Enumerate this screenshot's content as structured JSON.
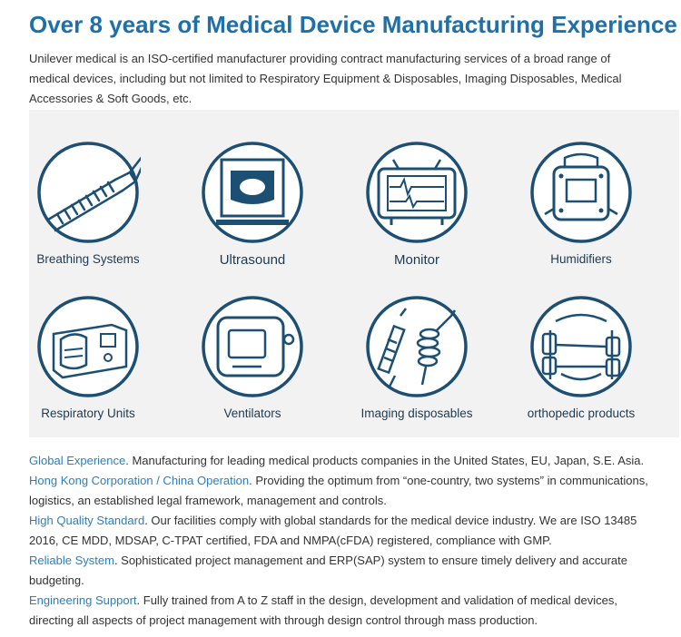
{
  "title": "Over 8 years of Medical Device Manufacturing Experience",
  "intro": "Unilever medical is an ISO-certified manufacturer providing contract manufacturing services of a broad range of medical devices, including but not limited to Respiratory Equipment & Disposables, Imaging Disposables, Medical Accessories & Soft Goods, etc.",
  "products": [
    {
      "label": "Breathing Systems",
      "icon": "breathing-tube-icon"
    },
    {
      "label": "Ultrasound",
      "icon": "ultrasound-screen-icon"
    },
    {
      "label": "Monitor",
      "icon": "monitor-icon"
    },
    {
      "label": "Humidifiers",
      "icon": "humidifier-icon"
    },
    {
      "label": "Respiratory Units",
      "icon": "respiratory-unit-icon"
    },
    {
      "label": "Ventilators",
      "icon": "ventilator-icon"
    },
    {
      "label": "Imaging disposables",
      "icon": "syringe-tubing-icon"
    },
    {
      "label": "orthopedic products",
      "icon": "arm-brace-icon"
    }
  ],
  "features": [
    {
      "heading": "Global Experience",
      "text": ". Manufacturing for leading medical products companies in the United States, EU, Japan, S.E. Asia."
    },
    {
      "heading": "Hong Kong Corporation / China Operation",
      "text": ". Providing the optimum from “one-country, two systems” in communications, logistics, an established legal framework, management and controls."
    },
    {
      "heading": "High Quality Standard",
      "text": ". Our facilities comply with global standards for the medical device industry. We are ISO 13485 2016, CE MDD, MDSAP, C-TPAT certified, FDA and NMPA(cFDA) registered, compliance with GMP."
    },
    {
      "heading": "Reliable System",
      "text": ". Sophisticated project management and ERP(SAP) system to ensure timely delivery and accurate budgeting."
    },
    {
      "heading": "Engineering Support",
      "text": ". Fully trained from A to Z staff in the design, development and validation of medical devices, directing all aspects of project management with through design control through mass production."
    }
  ],
  "colors": {
    "title": "#1f6fa8",
    "highlight": "#2a7fbf",
    "icon": "#1d4f73",
    "panel": "#f2f2f2"
  }
}
